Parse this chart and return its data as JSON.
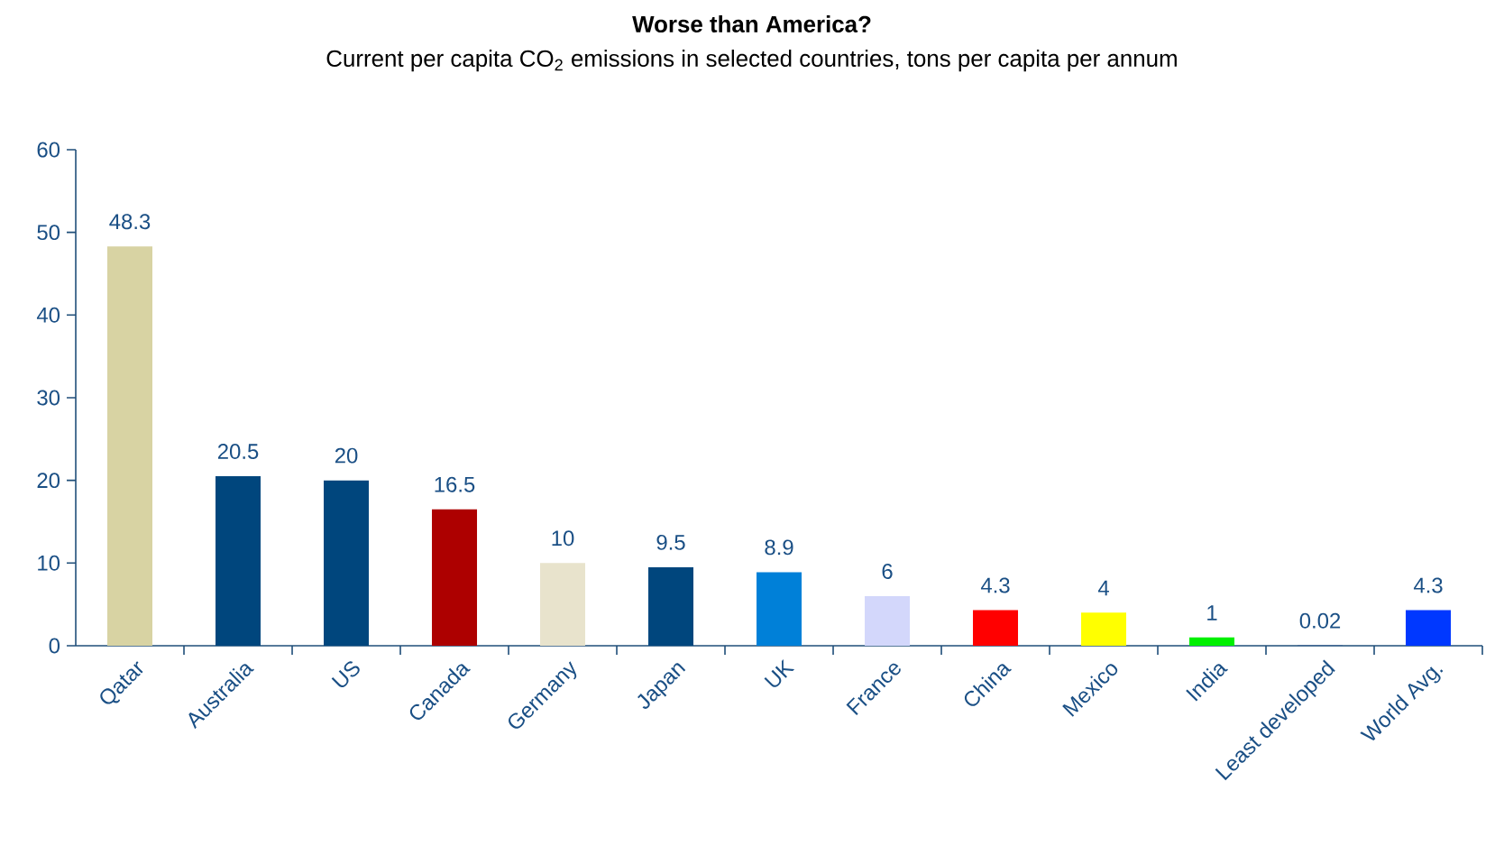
{
  "chart_data": {
    "type": "bar",
    "title": "Worse than America?",
    "subtitle": "Current per capita CO$_{2}$ emissions in selected countries, tons per capita per annum",
    "categories": [
      "Qatar",
      "Australia",
      "US",
      "Canada",
      "Germany",
      "Japan",
      "UK",
      "France",
      "China",
      "Mexico",
      "India",
      "Least developed",
      "World Avg."
    ],
    "values": [
      48.3,
      20.5,
      20,
      16.5,
      10,
      9.5,
      8.9,
      6,
      4.3,
      4,
      1,
      0.02,
      4.3
    ],
    "colors": [
      "#d8d3a3",
      "#00467d",
      "#00467d",
      "#ad0000",
      "#e8e3cc",
      "#00467d",
      "#0080d8",
      "#d3d7fb",
      "#ff0000",
      "#ffff00",
      "#00f000",
      "#0a3a8a",
      "#0038ff"
    ],
    "ylim": [
      0,
      60
    ],
    "yticks": [
      0,
      10,
      20,
      30,
      40,
      50,
      60
    ],
    "data_labels": true
  }
}
